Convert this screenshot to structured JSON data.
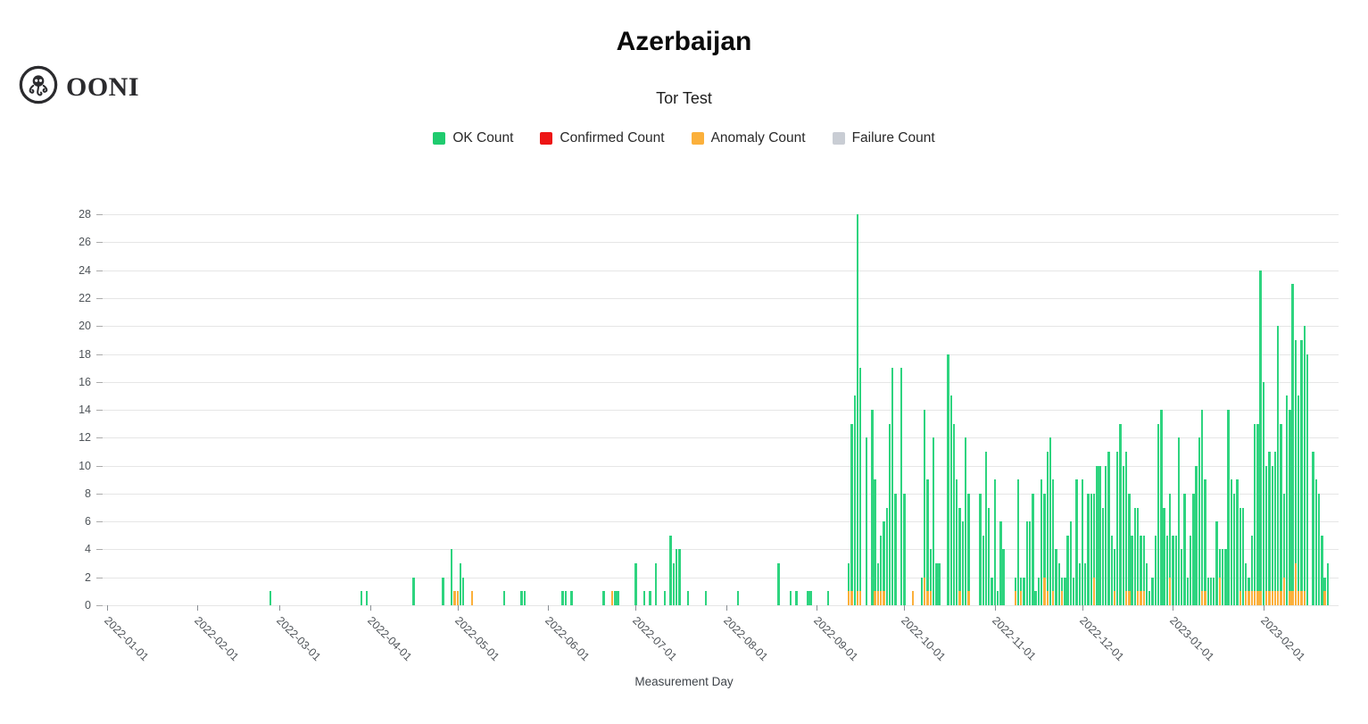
{
  "header": {
    "brand": "OONI",
    "title": "Azerbaijan",
    "subtitle": "Tor Test"
  },
  "legend": [
    {
      "label": "OK Count",
      "color": "#1fcb6e"
    },
    {
      "label": "Confirmed Count",
      "color": "#ed1515"
    },
    {
      "label": "Anomaly Count",
      "color": "#fbb03b"
    },
    {
      "label": "Failure Count",
      "color": "#c9cdd4"
    }
  ],
  "chart_data": {
    "type": "bar",
    "stacked": true,
    "title": "Azerbaijan",
    "subtitle": "Tor Test",
    "xlabel": "Measurement Day",
    "ylabel": "",
    "ylim": [
      0,
      28
    ],
    "ytick_step": 2,
    "grid": true,
    "legend_position": "top",
    "x_start": "2022-01-01",
    "x_end": "2023-02-25",
    "x_tick_labels": [
      "2022-01-01",
      "2022-02-01",
      "2022-03-01",
      "2022-04-01",
      "2022-05-01",
      "2022-06-01",
      "2022-07-01",
      "2022-08-01",
      "2022-09-01",
      "2022-10-01",
      "2022-11-01",
      "2022-12-01",
      "2023-01-01",
      "2023-02-01"
    ],
    "series_colors": {
      "ok": "#2ed47f",
      "confirmed": "#ed1515",
      "anomaly": "#fbb03b",
      "failure": "#c9cdd4"
    },
    "stack_order_bottom_to_top": [
      "anomaly",
      "ok"
    ],
    "columns": [
      "date",
      "ok_count",
      "confirmed_count",
      "anomaly_count",
      "failure_count"
    ],
    "rows": [
      [
        "2022-02-26",
        1,
        0,
        0,
        0
      ],
      [
        "2022-03-29",
        1,
        0,
        0,
        0
      ],
      [
        "2022-03-31",
        1,
        0,
        0,
        0
      ],
      [
        "2022-04-16",
        2,
        0,
        0,
        0
      ],
      [
        "2022-04-26",
        2,
        0,
        0,
        0
      ],
      [
        "2022-04-29",
        4,
        0,
        0,
        0
      ],
      [
        "2022-04-30",
        0,
        0,
        1,
        0
      ],
      [
        "2022-05-01",
        0,
        0,
        1,
        0
      ],
      [
        "2022-05-02",
        3,
        0,
        0,
        0
      ],
      [
        "2022-05-03",
        2,
        0,
        0,
        0
      ],
      [
        "2022-05-06",
        0,
        0,
        1,
        0
      ],
      [
        "2022-05-17",
        1,
        0,
        0,
        0
      ],
      [
        "2022-05-23",
        1,
        0,
        0,
        0
      ],
      [
        "2022-05-24",
        1,
        0,
        0,
        0
      ],
      [
        "2022-06-06",
        1,
        0,
        0,
        0
      ],
      [
        "2022-06-07",
        1,
        0,
        0,
        0
      ],
      [
        "2022-06-09",
        1,
        0,
        0,
        0
      ],
      [
        "2022-06-20",
        1,
        0,
        0,
        0
      ],
      [
        "2022-06-23",
        0,
        0,
        1,
        0
      ],
      [
        "2022-06-24",
        1,
        0,
        0,
        0
      ],
      [
        "2022-06-25",
        1,
        0,
        0,
        0
      ],
      [
        "2022-07-01",
        3,
        0,
        0,
        0
      ],
      [
        "2022-07-04",
        1,
        0,
        0,
        0
      ],
      [
        "2022-07-06",
        1,
        0,
        0,
        0
      ],
      [
        "2022-07-08",
        3,
        0,
        0,
        0
      ],
      [
        "2022-07-11",
        1,
        0,
        0,
        0
      ],
      [
        "2022-07-13",
        5,
        0,
        0,
        0
      ],
      [
        "2022-07-14",
        3,
        0,
        0,
        0
      ],
      [
        "2022-07-15",
        4,
        0,
        0,
        0
      ],
      [
        "2022-07-16",
        4,
        0,
        0,
        0
      ],
      [
        "2022-07-19",
        1,
        0,
        0,
        0
      ],
      [
        "2022-07-25",
        1,
        0,
        0,
        0
      ],
      [
        "2022-08-05",
        1,
        0,
        0,
        0
      ],
      [
        "2022-08-19",
        3,
        0,
        0,
        0
      ],
      [
        "2022-08-23",
        1,
        0,
        0,
        0
      ],
      [
        "2022-08-25",
        1,
        0,
        0,
        0
      ],
      [
        "2022-08-29",
        1,
        0,
        0,
        0
      ],
      [
        "2022-08-30",
        1,
        0,
        0,
        0
      ],
      [
        "2022-09-05",
        1,
        0,
        0,
        0
      ],
      [
        "2022-09-12",
        2,
        0,
        1,
        0
      ],
      [
        "2022-09-13",
        12,
        0,
        1,
        0
      ],
      [
        "2022-09-14",
        15,
        0,
        0,
        0
      ],
      [
        "2022-09-15",
        27,
        0,
        1,
        0
      ],
      [
        "2022-09-16",
        16,
        0,
        1,
        0
      ],
      [
        "2022-09-18",
        12,
        0,
        0,
        0
      ],
      [
        "2022-09-20",
        14,
        0,
        0,
        0
      ],
      [
        "2022-09-21",
        8,
        0,
        1,
        0
      ],
      [
        "2022-09-22",
        2,
        0,
        1,
        0
      ],
      [
        "2022-09-23",
        4,
        0,
        1,
        0
      ],
      [
        "2022-09-24",
        5,
        0,
        1,
        0
      ],
      [
        "2022-09-25",
        7,
        0,
        0,
        0
      ],
      [
        "2022-09-26",
        13,
        0,
        0,
        0
      ],
      [
        "2022-09-27",
        17,
        0,
        0,
        0
      ],
      [
        "2022-09-28",
        8,
        0,
        0,
        0
      ],
      [
        "2022-09-30",
        17,
        0,
        0,
        0
      ],
      [
        "2022-10-01",
        8,
        0,
        0,
        0
      ],
      [
        "2022-10-04",
        0,
        0,
        1,
        0
      ],
      [
        "2022-10-07",
        2,
        0,
        0,
        0
      ],
      [
        "2022-10-08",
        12,
        0,
        2,
        0
      ],
      [
        "2022-10-09",
        8,
        0,
        1,
        0
      ],
      [
        "2022-10-10",
        3,
        0,
        1,
        0
      ],
      [
        "2022-10-11",
        12,
        0,
        0,
        0
      ],
      [
        "2022-10-12",
        3,
        0,
        0,
        0
      ],
      [
        "2022-10-13",
        3,
        0,
        0,
        0
      ],
      [
        "2022-10-16",
        18,
        0,
        0,
        0
      ],
      [
        "2022-10-17",
        15,
        0,
        0,
        0
      ],
      [
        "2022-10-18",
        13,
        0,
        0,
        0
      ],
      [
        "2022-10-19",
        9,
        0,
        0,
        0
      ],
      [
        "2022-10-20",
        6,
        0,
        1,
        0
      ],
      [
        "2022-10-21",
        6,
        0,
        0,
        0
      ],
      [
        "2022-10-22",
        12,
        0,
        0,
        0
      ],
      [
        "2022-10-23",
        7,
        0,
        1,
        0
      ],
      [
        "2022-10-27",
        8,
        0,
        0,
        0
      ],
      [
        "2022-10-28",
        5,
        0,
        0,
        0
      ],
      [
        "2022-10-29",
        11,
        0,
        0,
        0
      ],
      [
        "2022-10-30",
        7,
        0,
        0,
        0
      ],
      [
        "2022-10-31",
        2,
        0,
        0,
        0
      ],
      [
        "2022-11-01",
        9,
        0,
        0,
        0
      ],
      [
        "2022-11-02",
        1,
        0,
        0,
        0
      ],
      [
        "2022-11-03",
        6,
        0,
        0,
        0
      ],
      [
        "2022-11-04",
        4,
        0,
        0,
        0
      ],
      [
        "2022-11-08",
        1,
        0,
        1,
        0
      ],
      [
        "2022-11-09",
        9,
        0,
        0,
        0
      ],
      [
        "2022-11-10",
        1,
        0,
        1,
        0
      ],
      [
        "2022-11-11",
        2,
        0,
        0,
        0
      ],
      [
        "2022-11-12",
        6,
        0,
        0,
        0
      ],
      [
        "2022-11-13",
        6,
        0,
        0,
        0
      ],
      [
        "2022-11-14",
        8,
        0,
        0,
        0
      ],
      [
        "2022-11-15",
        1,
        0,
        0,
        0
      ],
      [
        "2022-11-16",
        2,
        0,
        0,
        0
      ],
      [
        "2022-11-17",
        9,
        0,
        0,
        0
      ],
      [
        "2022-11-18",
        6,
        0,
        2,
        0
      ],
      [
        "2022-11-19",
        10,
        0,
        1,
        0
      ],
      [
        "2022-11-20",
        12,
        0,
        0,
        0
      ],
      [
        "2022-11-21",
        8,
        0,
        1,
        0
      ],
      [
        "2022-11-22",
        4,
        0,
        0,
        0
      ],
      [
        "2022-11-23",
        3,
        0,
        0,
        0
      ],
      [
        "2022-11-24",
        1,
        0,
        1,
        0
      ],
      [
        "2022-11-25",
        2,
        0,
        0,
        0
      ],
      [
        "2022-11-26",
        5,
        0,
        0,
        0
      ],
      [
        "2022-11-27",
        6,
        0,
        0,
        0
      ],
      [
        "2022-11-28",
        2,
        0,
        0,
        0
      ],
      [
        "2022-11-29",
        9,
        0,
        0,
        0
      ],
      [
        "2022-11-30",
        3,
        0,
        0,
        0
      ],
      [
        "2022-12-01",
        9,
        0,
        0,
        0
      ],
      [
        "2022-12-02",
        3,
        0,
        0,
        0
      ],
      [
        "2022-12-03",
        8,
        0,
        0,
        0
      ],
      [
        "2022-12-04",
        8,
        0,
        0,
        0
      ],
      [
        "2022-12-05",
        6,
        0,
        2,
        0
      ],
      [
        "2022-12-06",
        10,
        0,
        0,
        0
      ],
      [
        "2022-12-07",
        10,
        0,
        0,
        0
      ],
      [
        "2022-12-08",
        7,
        0,
        0,
        0
      ],
      [
        "2022-12-09",
        10,
        0,
        0,
        0
      ],
      [
        "2022-12-10",
        11,
        0,
        0,
        0
      ],
      [
        "2022-12-11",
        5,
        0,
        0,
        0
      ],
      [
        "2022-12-12",
        3,
        0,
        1,
        0
      ],
      [
        "2022-12-13",
        11,
        0,
        0,
        0
      ],
      [
        "2022-12-14",
        13,
        0,
        0,
        0
      ],
      [
        "2022-12-15",
        10,
        0,
        0,
        0
      ],
      [
        "2022-12-16",
        10,
        0,
        1,
        0
      ],
      [
        "2022-12-17",
        7,
        0,
        1,
        0
      ],
      [
        "2022-12-18",
        5,
        0,
        0,
        0
      ],
      [
        "2022-12-19",
        7,
        0,
        0,
        0
      ],
      [
        "2022-12-20",
        6,
        0,
        1,
        0
      ],
      [
        "2022-12-21",
        4,
        0,
        1,
        0
      ],
      [
        "2022-12-22",
        4,
        0,
        1,
        0
      ],
      [
        "2022-12-23",
        3,
        0,
        0,
        0
      ],
      [
        "2022-12-24",
        1,
        0,
        0,
        0
      ],
      [
        "2022-12-25",
        2,
        0,
        0,
        0
      ],
      [
        "2022-12-26",
        5,
        0,
        0,
        0
      ],
      [
        "2022-12-27",
        13,
        0,
        0,
        0
      ],
      [
        "2022-12-28",
        14,
        0,
        0,
        0
      ],
      [
        "2022-12-29",
        7,
        0,
        0,
        0
      ],
      [
        "2022-12-30",
        5,
        0,
        0,
        0
      ],
      [
        "2022-12-31",
        6,
        0,
        2,
        0
      ],
      [
        "2023-01-01",
        5,
        0,
        0,
        0
      ],
      [
        "2023-01-02",
        5,
        0,
        0,
        0
      ],
      [
        "2023-01-03",
        12,
        0,
        0,
        0
      ],
      [
        "2023-01-04",
        4,
        0,
        0,
        0
      ],
      [
        "2023-01-05",
        8,
        0,
        0,
        0
      ],
      [
        "2023-01-06",
        2,
        0,
        0,
        0
      ],
      [
        "2023-01-07",
        5,
        0,
        0,
        0
      ],
      [
        "2023-01-08",
        8,
        0,
        0,
        0
      ],
      [
        "2023-01-09",
        10,
        0,
        0,
        0
      ],
      [
        "2023-01-10",
        12,
        0,
        0,
        0
      ],
      [
        "2023-01-11",
        13,
        0,
        1,
        0
      ],
      [
        "2023-01-12",
        8,
        0,
        1,
        0
      ],
      [
        "2023-01-13",
        2,
        0,
        0,
        0
      ],
      [
        "2023-01-14",
        2,
        0,
        0,
        0
      ],
      [
        "2023-01-15",
        2,
        0,
        0,
        0
      ],
      [
        "2023-01-16",
        6,
        0,
        0,
        0
      ],
      [
        "2023-01-17",
        2,
        0,
        2,
        0
      ],
      [
        "2023-01-18",
        4,
        0,
        0,
        0
      ],
      [
        "2023-01-19",
        4,
        0,
        0,
        0
      ],
      [
        "2023-01-20",
        14,
        0,
        0,
        0
      ],
      [
        "2023-01-21",
        9,
        0,
        0,
        0
      ],
      [
        "2023-01-22",
        8,
        0,
        0,
        0
      ],
      [
        "2023-01-23",
        9,
        0,
        0,
        0
      ],
      [
        "2023-01-24",
        6,
        0,
        1,
        0
      ],
      [
        "2023-01-25",
        7,
        0,
        0,
        0
      ],
      [
        "2023-01-26",
        2,
        0,
        1,
        0
      ],
      [
        "2023-01-27",
        1,
        0,
        1,
        0
      ],
      [
        "2023-01-28",
        4,
        0,
        1,
        0
      ],
      [
        "2023-01-29",
        12,
        0,
        1,
        0
      ],
      [
        "2023-01-30",
        12,
        0,
        1,
        0
      ],
      [
        "2023-01-31",
        23,
        0,
        1,
        0
      ],
      [
        "2023-02-01",
        16,
        0,
        0,
        0
      ],
      [
        "2023-02-02",
        9,
        0,
        1,
        0
      ],
      [
        "2023-02-03",
        10,
        0,
        1,
        0
      ],
      [
        "2023-02-04",
        9,
        0,
        1,
        0
      ],
      [
        "2023-02-05",
        10,
        0,
        1,
        0
      ],
      [
        "2023-02-06",
        19,
        0,
        1,
        0
      ],
      [
        "2023-02-07",
        12,
        0,
        1,
        0
      ],
      [
        "2023-02-08",
        6,
        0,
        2,
        0
      ],
      [
        "2023-02-09",
        15,
        0,
        0,
        0
      ],
      [
        "2023-02-10",
        13,
        0,
        1,
        0
      ],
      [
        "2023-02-11",
        22,
        0,
        1,
        0
      ],
      [
        "2023-02-12",
        16,
        0,
        3,
        0
      ],
      [
        "2023-02-13",
        14,
        0,
        1,
        0
      ],
      [
        "2023-02-14",
        18,
        0,
        1,
        0
      ],
      [
        "2023-02-15",
        19,
        0,
        1,
        0
      ],
      [
        "2023-02-16",
        18,
        0,
        0,
        0
      ],
      [
        "2023-02-18",
        11,
        0,
        0,
        0
      ],
      [
        "2023-02-19",
        9,
        0,
        0,
        0
      ],
      [
        "2023-02-20",
        8,
        0,
        0,
        0
      ],
      [
        "2023-02-21",
        5,
        0,
        0,
        0
      ],
      [
        "2023-02-22",
        1,
        0,
        1,
        0
      ],
      [
        "2023-02-23",
        3,
        0,
        0,
        0
      ]
    ]
  }
}
